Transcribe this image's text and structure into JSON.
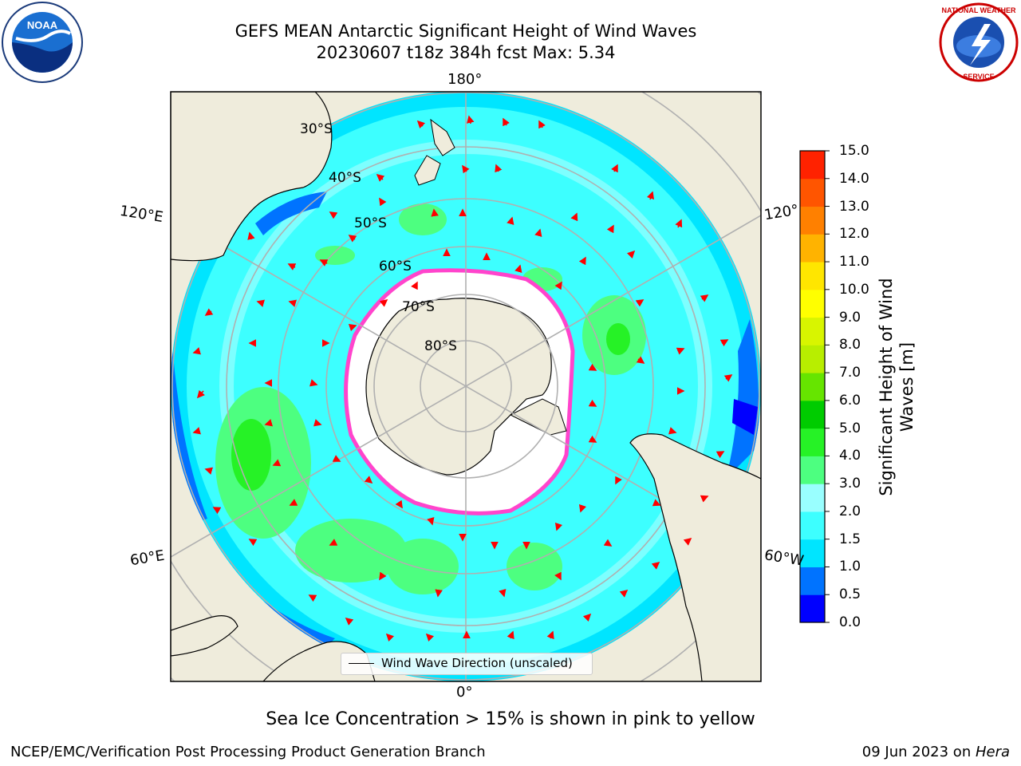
{
  "header": {
    "title_line1": "GEFS MEAN Antarctic Significant Height of Wind Waves",
    "title_line2": "20230607 t18z 384h fcst   Max: 5.34"
  },
  "logos": {
    "noaa": "noaa-logo",
    "nws": "national-weather-service-logo"
  },
  "map": {
    "projection": "south-polar-stereographic",
    "lon_labels": {
      "top": "180°",
      "bottom": "0°",
      "left_upper": "120°E",
      "left_lower": "60°E",
      "right_upper": "120°",
      "right_lower": "60°W"
    },
    "lat_labels": [
      "30°S",
      "40°S",
      "50°S",
      "60°S",
      "70°S",
      "80°S"
    ],
    "legend_label": "Wind Wave Direction (unscaled)",
    "colors": {
      "land": "#efecdc",
      "ice_free_no_data": "#ffffff",
      "arrow": "#ff0000",
      "grid": "#b0b0b0",
      "sea_ice_edge": "#ff44cc"
    }
  },
  "colorbar": {
    "title": "Significant Height of Wind Waves [m]",
    "ticks": [
      "0.0",
      "0.5",
      "1.0",
      "1.5",
      "2.0",
      "3.0",
      "4.0",
      "5.0",
      "6.0",
      "7.0",
      "8.0",
      "9.0",
      "10.0",
      "11.0",
      "12.0",
      "13.0",
      "14.0",
      "15.0"
    ],
    "colors": [
      "#0000ff",
      "#0073ff",
      "#00e5ff",
      "#3dffff",
      "#99ffff",
      "#4dff80",
      "#26f226",
      "#00cc00",
      "#66e500",
      "#b8ee00",
      "#d8f500",
      "#ffff00",
      "#ffe600",
      "#ffb300",
      "#ff8000",
      "#ff5500",
      "#ff2200",
      "#ff0000"
    ]
  },
  "notes": {
    "ice": "Sea Ice Concentration > 15% is shown in pink to yellow"
  },
  "footer": {
    "left": "NCEP/EMC/Verification Post Processing Product Generation Branch",
    "right_prefix": "09 Jun 2023 on ",
    "right_machine": "Hera"
  }
}
